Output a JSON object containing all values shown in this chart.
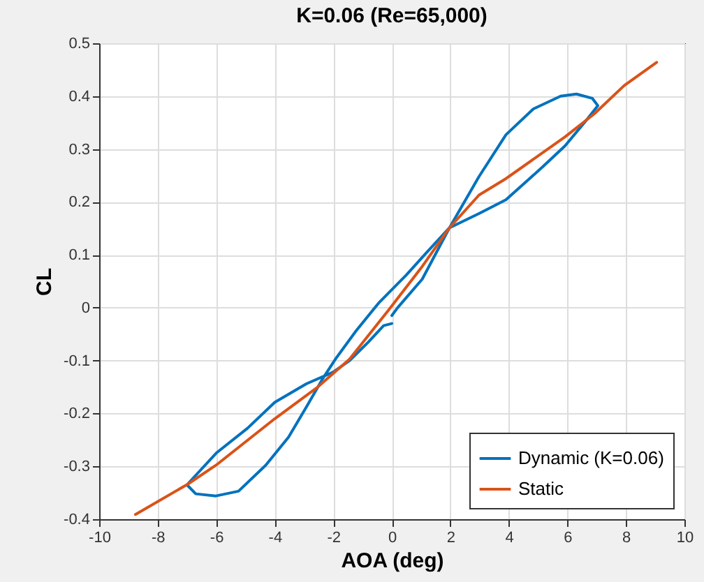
{
  "chart_data": {
    "type": "line",
    "title": "K=0.06 (Re=65,000)",
    "xlabel": "AOA (deg)",
    "ylabel": "CL",
    "xlim": [
      -10,
      10
    ],
    "xticks": [
      -10,
      -8,
      -6,
      -4,
      -2,
      0,
      2,
      4,
      6,
      8,
      10
    ],
    "ylim": [
      -0.4,
      0.5
    ],
    "yticks": [
      -0.4,
      -0.3,
      -0.2,
      -0.1,
      0,
      0.1,
      0.2,
      0.3,
      0.4,
      0.5
    ],
    "grid": true,
    "legend": "bottom right",
    "line_style": "solid",
    "marker": "none",
    "series": [
      {
        "name": "Dynamic (K=0.06)",
        "color": "#0072bd",
        "x": [
          0,
          0.2,
          1.04,
          1.97,
          2.98,
          3.9,
          5.15,
          5.92,
          6.7,
          7.04,
          6.85,
          6.31,
          5.77,
          4.84,
          3.9,
          2.98,
          1.97,
          1.2,
          0.5,
          -0.43,
          -1.21,
          -1.91,
          -2.37,
          -2.92,
          -3.53,
          -4.31,
          -5.24,
          -6.01,
          -6.7,
          -7.0,
          -6.0,
          -4.93,
          -4.0,
          -2.92,
          -2.01,
          -1.44,
          -0.8,
          -0.28,
          0
        ],
        "values": [
          -0.015,
          0.0,
          0.054,
          0.151,
          0.178,
          0.204,
          0.266,
          0.306,
          0.358,
          0.382,
          0.396,
          0.404,
          0.4,
          0.376,
          0.327,
          0.248,
          0.151,
          0.105,
          0.062,
          0.01,
          -0.043,
          -0.096,
          -0.135,
          -0.188,
          -0.245,
          -0.298,
          -0.347,
          -0.356,
          -0.352,
          -0.335,
          -0.275,
          -0.228,
          -0.179,
          -0.144,
          -0.122,
          -0.1,
          -0.065,
          -0.034,
          -0.03
        ]
      },
      {
        "name": "Static",
        "color": "#d95319",
        "x": [
          -8.76,
          -6.98,
          -6.01,
          -4.0,
          -2.53,
          -1.44,
          -0.09,
          1.0,
          1.97,
          2.98,
          3.9,
          5.92,
          6.93,
          7.94,
          9.05
        ],
        "values": [
          -0.391,
          -0.334,
          -0.298,
          -0.21,
          -0.15,
          -0.097,
          -0.003,
          0.075,
          0.151,
          0.213,
          0.244,
          0.323,
          0.367,
          0.42,
          0.464
        ]
      }
    ]
  }
}
